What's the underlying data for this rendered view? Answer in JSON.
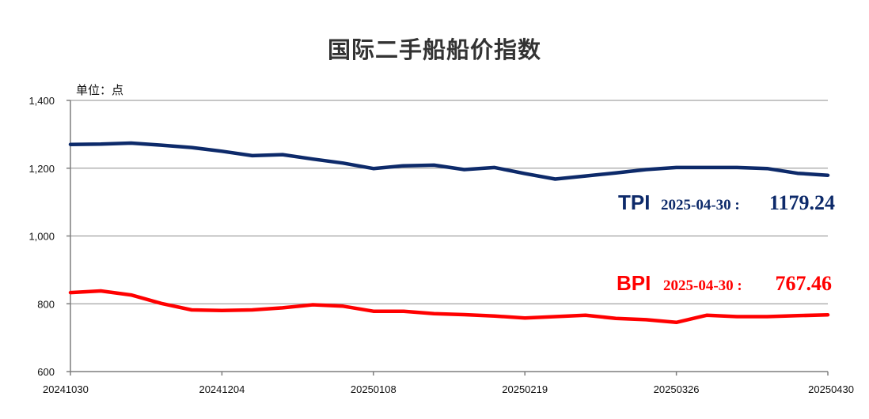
{
  "chart_data": {
    "type": "line",
    "title": "国际二手船船价指数",
    "unit_label": "单位：点",
    "ylim": [
      600,
      1400
    ],
    "y_ticks": [
      "600",
      "800",
      "1,000",
      "1,200",
      "1,400"
    ],
    "y_tick_values": [
      600,
      800,
      1000,
      1200,
      1400
    ],
    "x_tick_labels": [
      "20241030",
      "20241204",
      "20250108",
      "20250219",
      "20250326",
      "20250430"
    ],
    "x_tick_index": [
      0,
      5,
      10,
      15,
      20,
      25
    ],
    "grid": true,
    "series": [
      {
        "name": "TPI",
        "color": "#0d2a6a",
        "values": [
          1270,
          1271,
          1274,
          1268,
          1261,
          1250,
          1237,
          1240,
          1227,
          1215,
          1199,
          1207,
          1209,
          1196,
          1202,
          1184,
          1168,
          1177,
          1186,
          1196,
          1202,
          1202,
          1202,
          1199,
          1185,
          1179.24
        ],
        "end_label": {
          "name": "TPI",
          "date": "2025-04-30 :",
          "value": "1179.24"
        }
      },
      {
        "name": "BPI",
        "color": "#ff0000",
        "values": [
          833,
          838,
          826,
          801,
          782,
          780,
          782,
          788,
          797,
          793,
          778,
          778,
          771,
          768,
          764,
          758,
          762,
          766,
          757,
          753,
          745,
          766,
          762,
          762,
          765,
          767.46
        ],
        "end_label": {
          "name": "BPI",
          "date": "2025-04-30 :",
          "value": "767.46"
        }
      }
    ]
  }
}
